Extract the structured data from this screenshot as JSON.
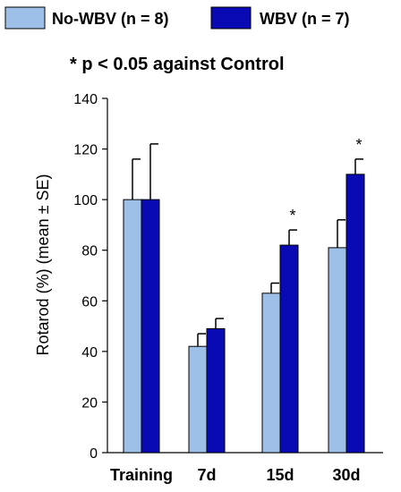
{
  "chart_data": {
    "type": "bar",
    "title": "",
    "annotation": "* p < 0.05 against Control",
    "xlabel": "",
    "ylabel": "Rotarod (%) (mean ± SE)",
    "ylim": [
      0,
      140
    ],
    "yticks": [
      0,
      20,
      40,
      60,
      80,
      100,
      120,
      140
    ],
    "grid": false,
    "legend_position": "top",
    "categories": [
      "Training",
      "7d",
      "15d",
      "30d"
    ],
    "series": [
      {
        "name": "No-WBV (n = 8)",
        "color": "#9dbfe8",
        "values": [
          100,
          42,
          63,
          81
        ],
        "errors": [
          16,
          5,
          4,
          11
        ],
        "significant": [
          false,
          false,
          false,
          false
        ]
      },
      {
        "name": "WBV (n = 7)",
        "color": "#0a0ab4",
        "values": [
          100,
          49,
          82,
          110
        ],
        "errors": [
          22,
          4,
          6,
          6
        ],
        "significant": [
          false,
          false,
          true,
          true
        ]
      }
    ],
    "significance_marker": "*"
  }
}
